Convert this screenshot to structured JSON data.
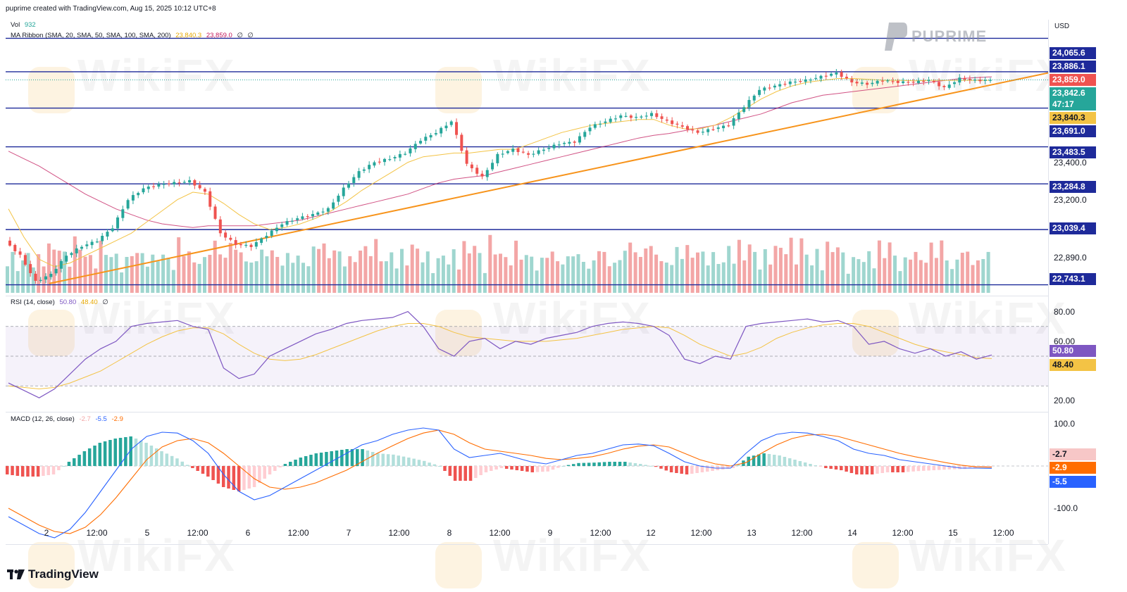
{
  "header": {
    "created_line": "puprime created with TradingView.com, Aug 15, 2025 10:12 UTC+8"
  },
  "legend_main": {
    "vol_label": "Vol",
    "vol_value": "932",
    "ma_label": "MA Ribbon (SMA, 20, SMA, 50, SMA, 100, SMA, 200)",
    "ma_v1": "23,840.3",
    "ma_v2": "23,859.0",
    "ma_v3": "∅",
    "ma_v4": "∅"
  },
  "legend_rsi": {
    "label": "RSI (14, close)",
    "v1": "50.80",
    "v2": "48.40",
    "v3": "∅"
  },
  "legend_macd": {
    "label": "MACD (12, 26, close)",
    "v1": "-2.7",
    "v2": "-5.5",
    "v3": "-2.9"
  },
  "brand": {
    "tradingview": "TradingView",
    "puprime": "PUPRIME",
    "watermark": "WikiFX"
  },
  "axis": {
    "currency": "USD"
  },
  "colors": {
    "up": "#26a69a",
    "down": "#ef5350",
    "up_vol": "#9fd6cf",
    "down_vol": "#f3a6a6",
    "level_line": "#1e2a9a",
    "trendline": "#f7931a",
    "sma20": "#f3c345",
    "sma50": "#c2185b",
    "rsi": "#7e57c2",
    "rsi_ma": "#f3c345",
    "macd": "#2962ff",
    "signal": "#ff6d00"
  },
  "chart_data": [
    {
      "type": "line",
      "title": "",
      "notes": "Main price pane: candlestick price with horizontal levels, ascending trendline and MA ribbon",
      "ylim": [
        22700,
        24120
      ],
      "y_ticks": [
        "23,400.0",
        "23,200.0",
        "22,890.0"
      ],
      "x_ticks": [
        "2",
        "12:00",
        "5",
        "12:00",
        "6",
        "12:00",
        "7",
        "12:00",
        "8",
        "12:00",
        "9",
        "12:00",
        "12",
        "12:00",
        "13",
        "12:00",
        "14",
        "12:00",
        "15",
        "12:00"
      ],
      "horizontal_levels": [
        "24,065.6",
        "23,886.1",
        "23,691.0",
        "23,483.5",
        "23,284.8",
        "23,039.4",
        "22,743.1"
      ],
      "price_tags": [
        {
          "label": "24,065.6",
          "color": "#1e2a9a"
        },
        {
          "label": "23,886.1",
          "color": "#1e2a9a"
        },
        {
          "label": "23,859.0",
          "color": "#ef5350"
        },
        {
          "label": "23,842.6",
          "color": "#26a69a"
        },
        {
          "label": "47:17",
          "color": "#26a69a"
        },
        {
          "label": "23,840.3",
          "color": "#f3c345"
        },
        {
          "label": "23,691.0",
          "color": "#1e2a9a"
        },
        {
          "label": "23,483.5",
          "color": "#1e2a9a"
        },
        {
          "label": "23,284.8",
          "color": "#1e2a9a"
        },
        {
          "label": "23,039.4",
          "color": "#1e2a9a"
        },
        {
          "label": "22,743.1",
          "color": "#1e2a9a"
        }
      ],
      "trendline": {
        "from_y": 22750,
        "to_y": 23880
      },
      "price_path": [
        22980,
        22900,
        22760,
        22800,
        22900,
        22950,
        22980,
        23050,
        23200,
        23260,
        23280,
        23290,
        23300,
        23240,
        23020,
        22960,
        22950,
        23010,
        23070,
        23100,
        23120,
        23150,
        23260,
        23350,
        23400,
        23420,
        23450,
        23520,
        23560,
        23620,
        23390,
        23320,
        23440,
        23470,
        23440,
        23470,
        23500,
        23510,
        23590,
        23620,
        23650,
        23640,
        23660,
        23620,
        23590,
        23560,
        23580,
        23600,
        23700,
        23790,
        23810,
        23830,
        23840,
        23860,
        23880,
        23830,
        23820,
        23840,
        23830,
        23830,
        23840,
        23800,
        23850,
        23840,
        23840
      ],
      "sma20_path": [
        23150,
        23000,
        22880,
        22840,
        22860,
        22900,
        22940,
        22980,
        23020,
        23080,
        23140,
        23200,
        23240,
        23230,
        23180,
        23120,
        23070,
        23040,
        23050,
        23070,
        23100,
        23140,
        23190,
        23250,
        23300,
        23350,
        23400,
        23430,
        23440,
        23450,
        23450,
        23460,
        23470,
        23470,
        23500,
        23530,
        23560,
        23580,
        23600,
        23610,
        23620,
        23630,
        23630,
        23600,
        23580,
        23580,
        23600,
        23640,
        23690,
        23740,
        23780,
        23810,
        23830,
        23840,
        23850,
        23850,
        23845,
        23840,
        23840,
        23838,
        23840,
        23840,
        23840,
        23840,
        23840
      ],
      "sma50_path": [
        23460,
        23420,
        23380,
        23330,
        23280,
        23230,
        23190,
        23150,
        23120,
        23090,
        23070,
        23060,
        23050,
        23060,
        23060,
        23060,
        23060,
        23070,
        23080,
        23090,
        23110,
        23130,
        23150,
        23170,
        23190,
        23210,
        23230,
        23260,
        23290,
        23310,
        23320,
        23330,
        23350,
        23370,
        23390,
        23410,
        23430,
        23450,
        23470,
        23490,
        23510,
        23530,
        23545,
        23555,
        23570,
        23585,
        23600,
        23620,
        23640,
        23660,
        23690,
        23720,
        23740,
        23760,
        23770,
        23780,
        23790,
        23800,
        23810,
        23820,
        23830,
        23840,
        23850,
        23855,
        23859
      ],
      "volume_up": [
        0.55,
        0.6,
        0.3,
        0.5,
        0.6,
        0.45,
        0.65,
        0.4,
        0.55,
        0.7
      ],
      "volume_down": [
        0.8,
        0.85,
        0.5,
        0.9,
        0.75,
        0.6,
        0.55,
        0.45,
        0.8,
        0.7
      ]
    },
    {
      "type": "line",
      "title": "",
      "notes": "RSI pane with 70/30 band",
      "ylim": [
        15,
        85
      ],
      "y_ticks": [
        "80.00",
        "60.00",
        "20.00"
      ],
      "band": [
        30,
        70
      ],
      "midline": 50,
      "last_values": [
        {
          "label": "50.80",
          "color": "#7e57c2"
        },
        {
          "label": "48.40",
          "color": "#f3c345"
        }
      ],
      "rsi_path": [
        32,
        27,
        22,
        28,
        38,
        48,
        55,
        60,
        70,
        72,
        73,
        74,
        70,
        68,
        42,
        35,
        38,
        50,
        55,
        60,
        65,
        68,
        72,
        74,
        75,
        76,
        80,
        70,
        55,
        50,
        60,
        62,
        55,
        60,
        58,
        62,
        64,
        66,
        70,
        72,
        73,
        72,
        70,
        64,
        48,
        45,
        50,
        48,
        70,
        72,
        73,
        74,
        75,
        73,
        74,
        70,
        58,
        60,
        55,
        52,
        55,
        50,
        53,
        48,
        50.8
      ],
      "rsi_ma_path": [
        30,
        29,
        28,
        29,
        32,
        36,
        40,
        46,
        52,
        58,
        63,
        67,
        69,
        69,
        65,
        58,
        52,
        48,
        47,
        48,
        51,
        55,
        59,
        63,
        67,
        70,
        72,
        72,
        70,
        66,
        63,
        62,
        61,
        60,
        60,
        60,
        61,
        62,
        64,
        66,
        68,
        69,
        70,
        69,
        64,
        58,
        54,
        50,
        52,
        56,
        62,
        66,
        69,
        71,
        72,
        72,
        70,
        66,
        62,
        58,
        55,
        53,
        51,
        49,
        48.4
      ]
    },
    {
      "type": "line",
      "title": "",
      "notes": "MACD pane with histogram",
      "ylim": [
        -180,
        120
      ],
      "y_ticks": [
        "100.0",
        "-100.0"
      ],
      "last_values": [
        {
          "label": "-2.7",
          "color": "#f7c7c7"
        },
        {
          "label": "-2.9",
          "color": "#ff6d00"
        },
        {
          "label": "-5.5",
          "color": "#2962ff"
        }
      ],
      "macd_path": [
        -120,
        -140,
        -160,
        -170,
        -150,
        -110,
        -60,
        -10,
        40,
        70,
        80,
        78,
        60,
        30,
        -20,
        -60,
        -80,
        -70,
        -50,
        -30,
        -10,
        10,
        30,
        50,
        60,
        75,
        85,
        90,
        85,
        40,
        20,
        25,
        30,
        20,
        10,
        5,
        15,
        25,
        30,
        40,
        50,
        52,
        48,
        30,
        10,
        0,
        -5,
        -5,
        30,
        60,
        75,
        80,
        78,
        70,
        60,
        40,
        30,
        25,
        15,
        10,
        5,
        0,
        -5,
        -5,
        -5.5
      ],
      "signal_path": [
        -100,
        -120,
        -140,
        -155,
        -160,
        -145,
        -115,
        -75,
        -30,
        15,
        45,
        60,
        65,
        55,
        30,
        0,
        -30,
        -50,
        -55,
        -50,
        -40,
        -25,
        -10,
        10,
        30,
        48,
        65,
        78,
        85,
        75,
        55,
        40,
        35,
        30,
        25,
        18,
        15,
        18,
        22,
        30,
        40,
        47,
        50,
        45,
        30,
        15,
        5,
        0,
        8,
        30,
        50,
        65,
        73,
        75,
        70,
        60,
        50,
        40,
        30,
        22,
        15,
        8,
        2,
        -2,
        -2.9
      ],
      "histogram": [
        -20,
        -25,
        -25,
        -20,
        10,
        35,
        55,
        65,
        70,
        55,
        35,
        18,
        -5,
        -25,
        -50,
        -60,
        -50,
        -20,
        5,
        20,
        30,
        35,
        40,
        40,
        30,
        27,
        20,
        12,
        0,
        -35,
        -35,
        -15,
        -5,
        -10,
        -15,
        -13,
        0,
        7,
        8,
        10,
        10,
        5,
        -2,
        -15,
        -20,
        -15,
        -10,
        -5,
        22,
        30,
        25,
        15,
        5,
        -5,
        -10,
        -20,
        -20,
        -15,
        -15,
        -12,
        -10,
        -8,
        -7,
        -3,
        -2.7
      ]
    }
  ]
}
